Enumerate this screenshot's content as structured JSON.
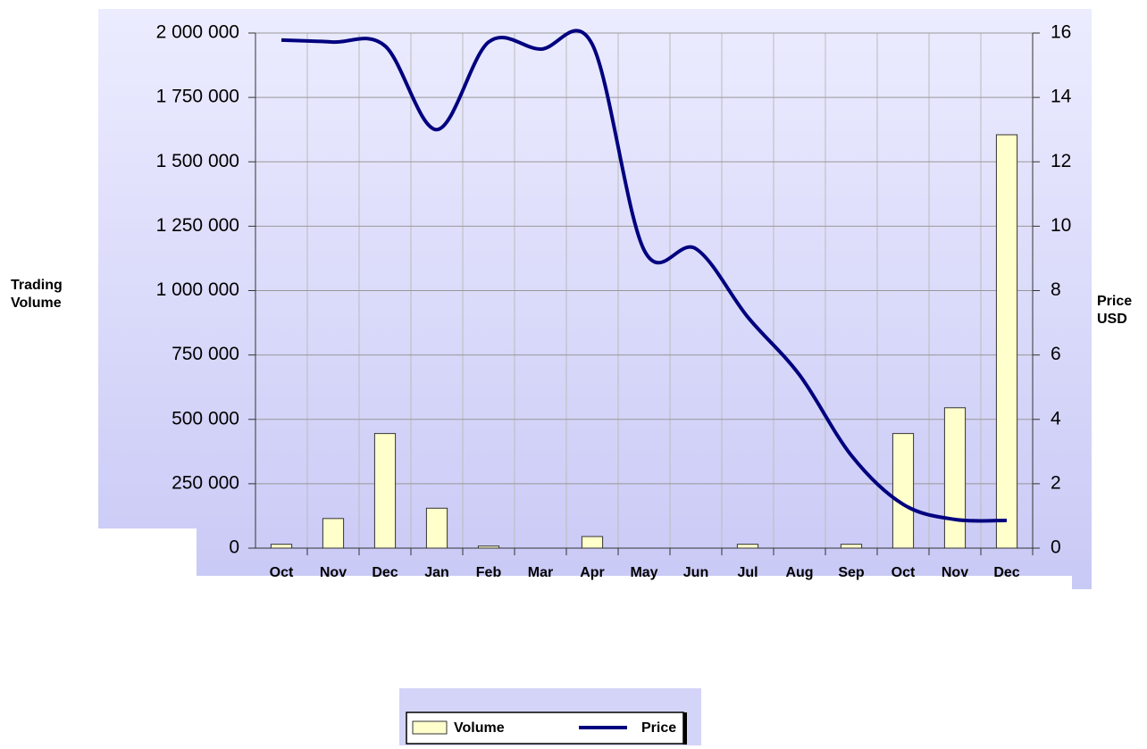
{
  "chart_data": {
    "type": "bar_line",
    "categories": [
      "Oct",
      "Nov",
      "Dec",
      "Jan",
      "Feb",
      "Mar",
      "Apr",
      "May",
      "Jun",
      "Jul",
      "Aug",
      "Sep",
      "Oct",
      "Nov",
      "Dec"
    ],
    "ylabel": [
      "Trading",
      "Volume"
    ],
    "y2label": [
      "Price",
      "USD"
    ],
    "series": [
      {
        "name": "Volume",
        "type": "bar",
        "color": "#ffffcc",
        "values": [
          15000,
          115000,
          445000,
          155000,
          8000,
          0,
          45000,
          0,
          0,
          15000,
          0,
          15000,
          445000,
          545000,
          1605000
        ]
      },
      {
        "name": "Price",
        "type": "line",
        "axis": "y2",
        "color": "#00007f",
        "values": [
          15.78,
          15.72,
          15.6,
          13.0,
          15.72,
          15.5,
          15.65,
          9.26,
          9.3,
          7.18,
          5.38,
          2.88,
          1.36,
          0.89,
          0.86
        ]
      }
    ],
    "ylim": [
      0,
      2000000
    ],
    "yticks": [
      0,
      {
        "value": 250000,
        "label": "250 000"
      },
      {
        "value": 500000,
        "label": "500 000"
      },
      {
        "value": 750000,
        "label": "750 000"
      },
      {
        "value": 1000000,
        "label": "1 000 000"
      },
      {
        "value": 1250000,
        "label": "1 250 000"
      },
      {
        "value": 1500000,
        "label": "1 500 000"
      },
      {
        "value": 1750000,
        "label": "1 750 000"
      },
      {
        "value": 2000000,
        "label": "2 000 000"
      }
    ],
    "y2lim": [
      0,
      16
    ],
    "y2ticks": [
      0,
      2,
      4,
      6,
      8,
      10,
      12,
      14,
      16
    ],
    "grid": true,
    "legend": "bottom"
  }
}
